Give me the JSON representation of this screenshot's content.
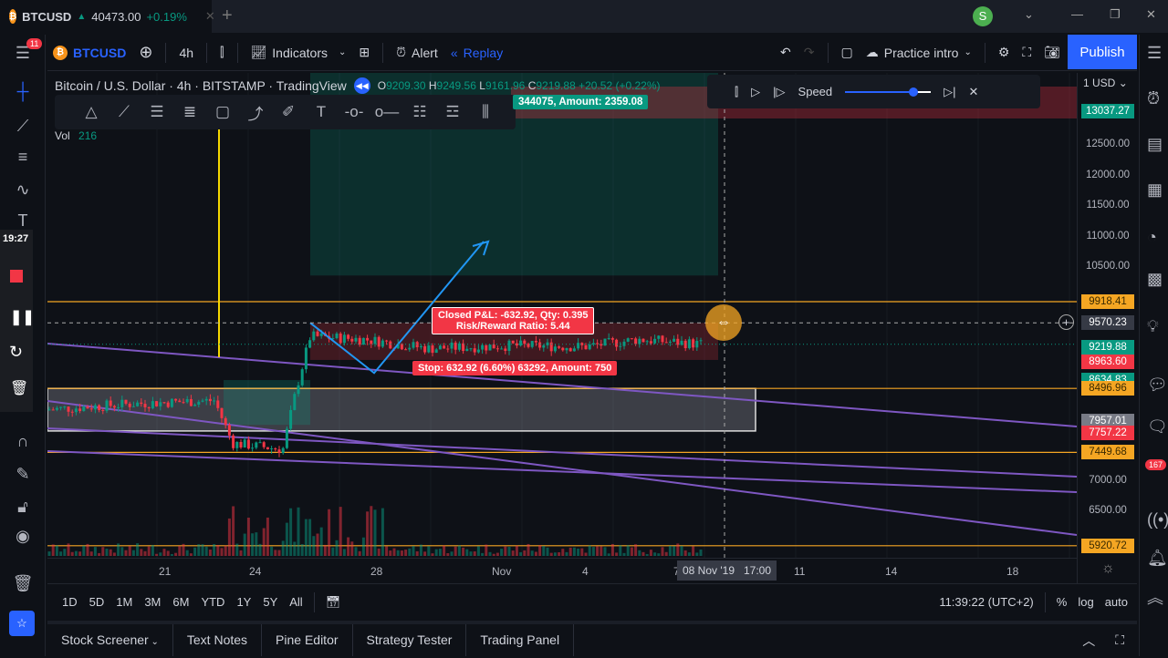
{
  "tab": {
    "symbol": "BTCUSD",
    "price": "40473.00",
    "change": "+0.19%",
    "arrow": "▲"
  },
  "toolbar": {
    "menu_badge": "11",
    "symbol": "BTCUSD",
    "interval": "4h",
    "indicators": "Indicators",
    "alert": "Alert",
    "replay": "Replay",
    "layout_name": "Practice intro",
    "publish": "Publish",
    "avatar": "S"
  },
  "legend": {
    "title": "Bitcoin / U.S. Dollar · 4h · BITSTAMP · TradingView",
    "o_label": "O",
    "o": "9209.30",
    "h_label": "H",
    "h": "9249.56",
    "l_label": "L",
    "l": "9161.96",
    "c_label": "C",
    "c": "9219.88",
    "change": "+20.52 (+0.22%)",
    "vol_label": "Vol",
    "vol": "216"
  },
  "replay": {
    "speed_label": "Speed",
    "speed_fraction": 0.8
  },
  "timer": "19:27",
  "position": {
    "target_label": "344075, Amount: 2359.08",
    "closed_pl": "Closed P&L: -632.92, Qty: 0.395",
    "rr": "Risk/Reward Ratio: 5.44",
    "stop": "Stop: 632.92 (6.60%) 63292, Amount: 750"
  },
  "price_axis": {
    "currency": "USD",
    "ticks": [
      "12500.00",
      "12000.00",
      "11500.00",
      "11000.00",
      "10500.00",
      "7000.00",
      "6500.00"
    ],
    "labels": [
      {
        "text": "13037.27",
        "color": "#089981"
      },
      {
        "text": "9918.41",
        "color": "#f5a623"
      },
      {
        "text": "9570.23",
        "color": "#363a45"
      },
      {
        "text": "9219.88",
        "color": "#089981"
      },
      {
        "text": "8963.60",
        "color": "#f23645"
      },
      {
        "text": "8634.83",
        "color": "#089981"
      },
      {
        "text": "8496.96",
        "color": "#f5a623"
      },
      {
        "text": "7957.01",
        "color": "#787b86"
      },
      {
        "text": "7757.22",
        "color": "#f23645"
      },
      {
        "text": "7449.68",
        "color": "#f5a623"
      },
      {
        "text": "5920.72",
        "color": "#f5a623"
      }
    ]
  },
  "time_axis": {
    "ticks": [
      "21",
      "24",
      "28",
      "Nov",
      "4",
      "7",
      "11",
      "14",
      "18"
    ],
    "crosshair": "08 Nov '19   17:00"
  },
  "range_bar": {
    "ranges": [
      "1D",
      "5D",
      "1M",
      "3M",
      "6M",
      "YTD",
      "1Y",
      "5Y",
      "All"
    ],
    "clock": "11:39:22 (UTC+2)",
    "percent": "%",
    "log": "log",
    "auto": "auto"
  },
  "bottom_tabs": [
    "Stock Screener",
    "Text Notes",
    "Pine Editor",
    "Strategy Tester",
    "Trading Panel"
  ],
  "right_badges": [
    "167"
  ],
  "colors": {
    "up": "#089981",
    "down": "#f23645",
    "accent": "#2962ff",
    "level": "#f5a623",
    "trend": "#7e57c2"
  }
}
